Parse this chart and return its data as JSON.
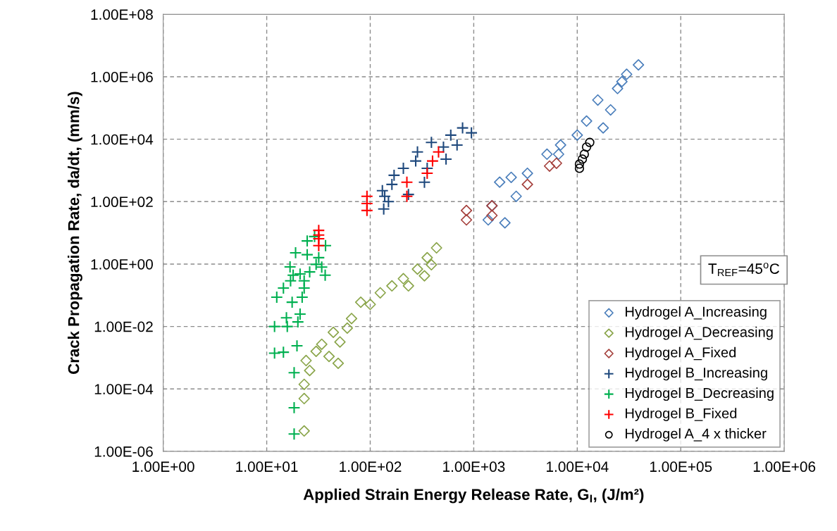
{
  "chart_data": {
    "type": "scatter",
    "xlabel": "Applied Strain Energy Release Rate, G$_{I}$, (J/m²)",
    "ylabel": "Crack Propagation Rate, da/dt, (mm/s)",
    "log": "xy",
    "grid": true,
    "legend": "lower right",
    "xlim": [
      1,
      1000000
    ],
    "xticks": [
      {
        "value": 1,
        "label": "1.00E+00"
      },
      {
        "value": 10,
        "label": "1.00E+01"
      },
      {
        "value": 100,
        "label": "1.00E+02"
      },
      {
        "value": 1000,
        "label": "1.00E+03"
      },
      {
        "value": 10000,
        "label": "1.00E+04"
      },
      {
        "value": 100000,
        "label": "1.00E+05"
      },
      {
        "value": 1000000,
        "label": "1.00E+06"
      }
    ],
    "ylim": [
      1e-06,
      100000000
    ],
    "yticks": [
      {
        "value": 1e-06,
        "label": "1.00E-06"
      },
      {
        "value": 0.0001,
        "label": "1.00E-04"
      },
      {
        "value": 0.01,
        "label": "1.00E-02"
      },
      {
        "value": 1,
        "label": "1.00E+00"
      },
      {
        "value": 100,
        "label": "1.00E+02"
      },
      {
        "value": 10000,
        "label": "1.00E+04"
      },
      {
        "value": 1000000,
        "label": "1.00E+06"
      },
      {
        "value": 100000000,
        "label": "1.00E+08"
      }
    ],
    "annotations": [
      "T$_{REF}$=45$^{o}$C"
    ],
    "series": [
      {
        "name": "Hydrogel A_Increasing",
        "color": "#4a7ebb",
        "marker": "diamond",
        "x": [
          1380,
          2000,
          1780,
          2570,
          3300,
          5100,
          6900,
          10000,
          12300,
          15800,
          17800,
          24500,
          30000,
          39000,
          21000,
          2300,
          1500,
          6600,
          27000
        ],
        "values": [
          26,
          21,
          420,
          148,
          810,
          3300,
          6500,
          13500,
          38000,
          180000,
          23000,
          420000,
          1200000,
          2400000,
          87000,
          600,
          74,
          3300,
          700000
        ]
      },
      {
        "name": "Hydrogel A_Decreasing",
        "color": "#8aa54a",
        "marker": "diamond",
        "x": [
          23,
          23,
          23,
          24,
          30,
          49,
          51,
          44,
          66,
          81,
          100,
          125,
          162,
          209,
          234,
          286,
          355,
          437,
          390,
          34,
          40,
          60,
          334,
          26
        ],
        "values": [
          4.5e-06,
          4.9e-05,
          0.00014,
          0.00081,
          0.0016,
          0.00066,
          0.0032,
          0.0065,
          0.018,
          0.06,
          0.051,
          0.12,
          0.2,
          0.34,
          0.2,
          0.69,
          1.6,
          3.3,
          0.95,
          0.0027,
          0.0011,
          0.0089,
          0.42,
          0.00039
        ]
      },
      {
        "name": "Hydrogel A_Fixed",
        "color": "#a5403c",
        "marker": "diamond",
        "x": [
          850,
          850,
          1500,
          1500,
          3300,
          5400,
          6300
        ],
        "values": [
          26,
          52,
          74,
          36,
          355,
          1380,
          1700
        ]
      },
      {
        "name": "Hydrogel B_Increasing",
        "color": "#1f497d",
        "marker": "cross",
        "x": [
          135,
          131,
          162,
          209,
          234,
          275,
          334,
          390,
          510,
          600,
          780,
          950,
          286,
          170,
          355,
          540,
          690,
          150,
          138
        ],
        "values": [
          58,
          224,
          355,
          1170,
          170,
          2000,
          417,
          7900,
          5600,
          13500,
          23000,
          16000,
          3900,
          700,
          1170,
          2300,
          6500,
          100,
          148
        ]
      },
      {
        "name": "Hydrogel B_Decreasing",
        "color": "#00b050",
        "marker": "cross",
        "x": [
          18.4,
          18.4,
          18.4,
          11.9,
          14.5,
          19.6,
          11.9,
          15.8,
          20,
          15.5,
          21,
          12.5,
          17.6,
          22,
          14.5,
          17,
          23,
          16.8,
          21,
          26,
          36.7,
          19,
          24.6,
          31.8,
          30,
          37,
          24.6,
          29,
          34,
          18,
          23
        ],
        "values": [
          3.6e-06,
          2.5e-05,
          0.00033,
          0.0014,
          0.0015,
          0.0024,
          0.01,
          0.01,
          0.014,
          0.019,
          0.025,
          0.087,
          0.06,
          0.087,
          0.17,
          0.29,
          0.29,
          0.81,
          0.48,
          0.56,
          0.44,
          2.3,
          2,
          1.6,
          0.98,
          3.9,
          5.5,
          7.6,
          0.8,
          0.44,
          0.17
        ]
      },
      {
        "name": "Hydrogel B_Fixed",
        "color": "#ff0000",
        "marker": "cross",
        "x": [
          31.8,
          31.8,
          31.8,
          31.8,
          93,
          93,
          93,
          226,
          226,
          355,
          400,
          457
        ],
        "values": [
          12,
          8.5,
          6.5,
          3.9,
          148,
          87,
          52,
          420,
          148,
          810,
          2000,
          3900
        ]
      },
      {
        "name": "Hydrogel A_4 x thicker",
        "color": "#000000",
        "marker": "circle",
        "x": [
          10500,
          11200,
          12300,
          13200,
          11700,
          10500
        ],
        "values": [
          1170,
          2300,
          5600,
          7900,
          3300,
          1600
        ]
      }
    ]
  }
}
